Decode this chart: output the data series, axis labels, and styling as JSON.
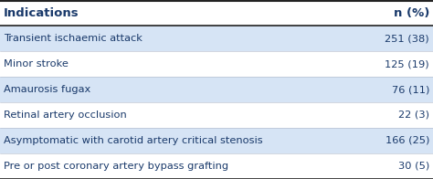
{
  "header_left": "Indications",
  "header_right": "n (%)",
  "rows": [
    {
      "indication": "Transient ischaemic attack",
      "value": "251 (38)",
      "shaded": true
    },
    {
      "indication": "Minor stroke",
      "value": "125 (19)",
      "shaded": false
    },
    {
      "indication": "Amaurosis fugax",
      "value": "76 (11)",
      "shaded": true
    },
    {
      "indication": "Retinal artery occlusion",
      "value": "22 (3)",
      "shaded": false
    },
    {
      "indication": "Asymptomatic with carotid artery critical stenosis",
      "value": "166 (25)",
      "shaded": true
    },
    {
      "indication": "Pre or post coronary artery bypass grafting",
      "value": "30 (5)",
      "shaded": false
    }
  ],
  "shaded_color": "#d6e4f5",
  "white_color": "#ffffff",
  "text_color": "#1a3a6b",
  "border_color": "#222222",
  "header_fontsize": 9.5,
  "row_fontsize": 8.2,
  "fig_width": 4.74,
  "fig_height": 1.96,
  "dpi": 100
}
